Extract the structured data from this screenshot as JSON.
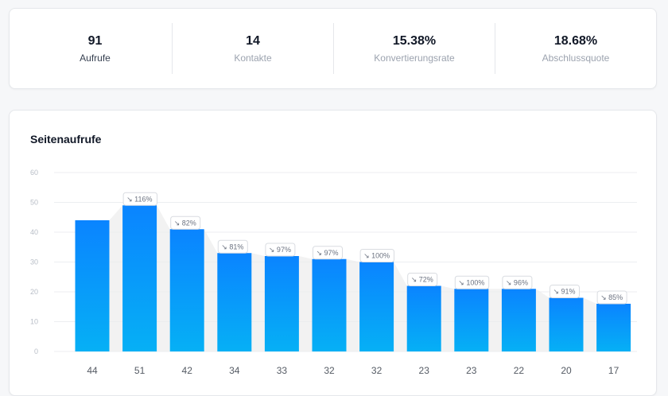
{
  "stats": [
    {
      "value": "91",
      "label": "Aufrufe"
    },
    {
      "value": "14",
      "label": "Kontakte"
    },
    {
      "value": "15.38%",
      "label": "Konvertierungsrate"
    },
    {
      "value": "18.68%",
      "label": "Abschlussquote"
    }
  ],
  "chart": {
    "title": "Seitenaufrufe"
  },
  "chart_data": {
    "type": "bar",
    "title": "Seitenaufrufe",
    "categories": [
      "44",
      "51",
      "42",
      "34",
      "33",
      "32",
      "32",
      "23",
      "23",
      "22",
      "20",
      "17"
    ],
    "values": [
      44,
      49,
      41,
      33,
      32,
      31,
      30,
      22,
      21,
      21,
      18,
      16
    ],
    "conversion_labels": [
      "",
      "116%",
      "82%",
      "81%",
      "97%",
      "97%",
      "100%",
      "72%",
      "100%",
      "96%",
      "91%",
      "85%"
    ],
    "yticks": [
      0,
      10,
      20,
      30,
      40,
      50,
      60
    ],
    "ylim": [
      0,
      60
    ],
    "grid": true,
    "colors": {
      "bar_top": "#0a84ff",
      "bar_bottom": "#06b0f5",
      "grid": "#eceef1",
      "tick": "#b8bec7",
      "label": "#555b64",
      "funnel": "#ececec"
    }
  }
}
